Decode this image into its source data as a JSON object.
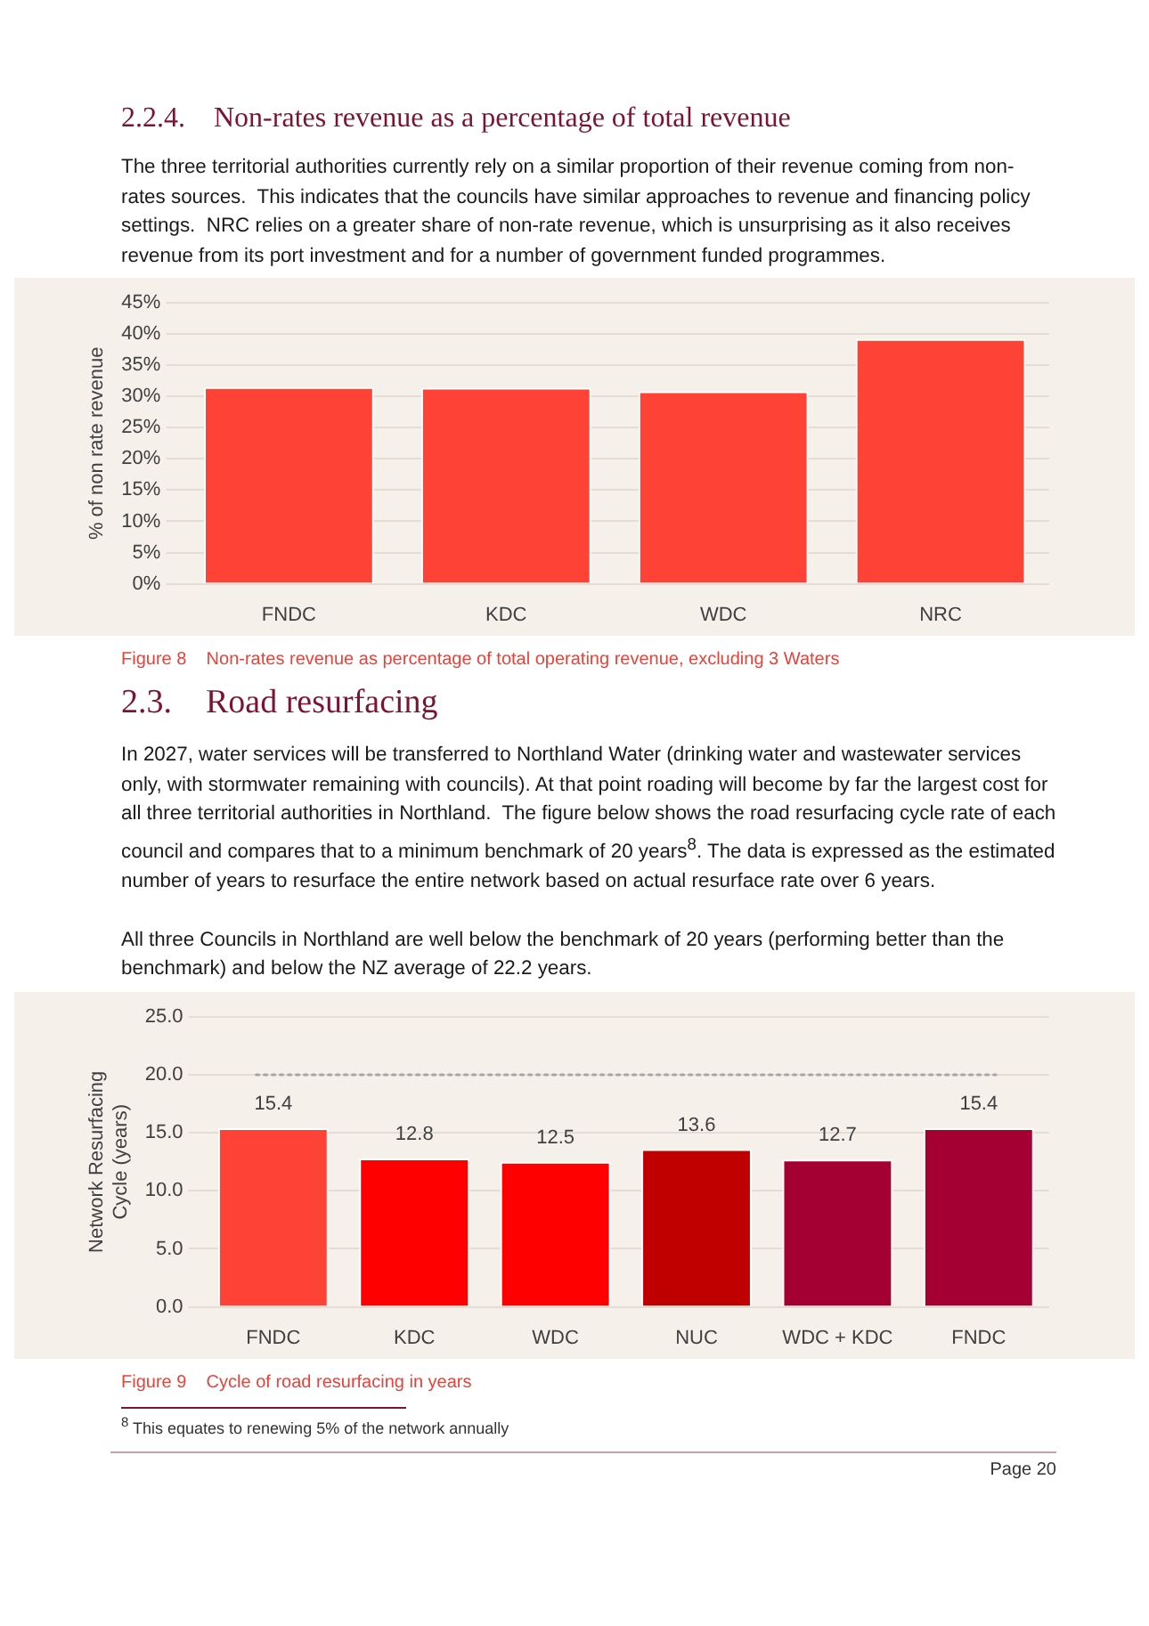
{
  "chart_data": [
    {
      "type": "bar",
      "title": "2.2.4.    Non-rates revenue as a percentage of total revenue",
      "subtitle": "The three territorial authorities currently rely on a similar proportion of their revenue coming from non-rates sources.  This indicates that the councils have similar approaches to revenue and financing policy settings.  NRC relies on a greater share of non-rate revenue, which is unsurprising as it also receives revenue from its port investment and for a number of government funded programmes.",
      "categories": [
        "FNDC",
        "KDC",
        "WDC",
        "NRC"
      ],
      "values": [
        31.5,
        31.4,
        30.8,
        39.2
      ],
      "color": "#ff4136",
      "ylabel": "% of non rate revenue",
      "ylim": [
        0,
        45
      ],
      "yticks": [
        {
          "value": 0,
          "label": "0%"
        },
        {
          "value": 5,
          "label": "5%"
        },
        {
          "value": 10,
          "label": "10%"
        },
        {
          "value": 15,
          "label": "15%"
        },
        {
          "value": 20,
          "label": "20%"
        },
        {
          "value": 25,
          "label": "25%"
        },
        {
          "value": 30,
          "label": "30%"
        },
        {
          "value": 35,
          "label": "35%"
        },
        {
          "value": 40,
          "label": "40%"
        },
        {
          "value": 45,
          "label": "45%"
        }
      ],
      "grid": "y",
      "legend": false,
      "annotations": [
        "Figure 8    Non-rates revenue as percentage of total operating revenue, excluding 3 Waters"
      ]
    },
    {
      "type": "bar",
      "title": "2.3.    Road resurfacing",
      "subtitle": "In 2027, water services will be transferred to Northland Water (drinking water and wastewater services only, with stormwater remaining with councils). At that point roading will become by far the largest cost for all three territorial authorities in Northland.  The figure below shows the road resurfacing cycle rate of each council and compares that to a minimum benchmark of 20 years$^{8}$. The data is expressed as the estimated number of years to resurface the entire network based on actual resurface rate over 6 years.\n\nAll three Councils in Northland are well below the benchmark of 20 years (performing better than the benchmark) and below the NZ average of 22.2 years.",
      "categories": [
        "FNDC",
        "KDC",
        "WDC",
        "NUC",
        "WDC + KDC",
        "FNDC"
      ],
      "values": [
        15.4,
        12.8,
        12.5,
        13.6,
        12.7,
        15.4
      ],
      "colors": [
        "#ff4136",
        "#ff0000",
        "#ff0000",
        "#c00000",
        "#a50034",
        "#a50034"
      ],
      "data_labels": true,
      "ylabel": "Network Resurfacing Cycle (years)",
      "ylim": [
        0,
        25
      ],
      "yticks": [
        {
          "value": 0,
          "label": "0.0"
        },
        {
          "value": 5,
          "label": "5.0"
        },
        {
          "value": 10,
          "label": "10.0"
        },
        {
          "value": 15,
          "label": "15.0"
        },
        {
          "value": 20,
          "label": "20.0"
        },
        {
          "value": 25,
          "label": "25.0"
        }
      ],
      "grid": "y",
      "legend": false,
      "ref_lines": [
        {
          "axis": "y",
          "value": 20,
          "color": "#a6a6a6",
          "line_style": "dotted"
        }
      ],
      "annotations": [
        "Figure 9    Cycle of road resurfacing in years",
        "$^{8}$ This equates to renewing 5% of the network annually",
        "Page 20"
      ]
    }
  ]
}
